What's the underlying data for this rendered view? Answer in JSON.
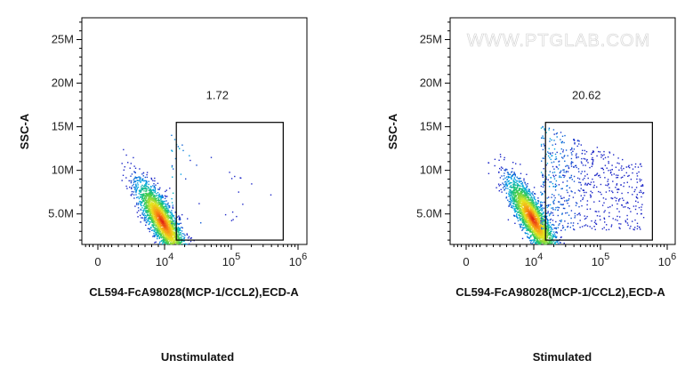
{
  "chart_data": [
    {
      "type": "scatter",
      "title": "Unstimulated",
      "xlabel": "CL594-FcA98028(MCP-1/CCL2),ECD-A",
      "ylabel": "SSC-A",
      "x_scale": "biexponential",
      "x_tick_labels": [
        "0",
        "10^4",
        "10^5",
        "10^6"
      ],
      "y_tick_labels": [
        "5.0M",
        "10M",
        "15M",
        "20M",
        "25M"
      ],
      "y_ticks": [
        5000000,
        10000000,
        15000000,
        20000000,
        25000000
      ],
      "ylim": [
        1500000,
        27500000
      ],
      "gate": {
        "x_range": [
          15000,
          600000
        ],
        "y_range": [
          2000000,
          15500000
        ],
        "percent": "1.72"
      },
      "population": {
        "center_x": 5000,
        "center_y": 4200000,
        "pct_in_gate": 1.72
      },
      "watermark": ""
    },
    {
      "type": "scatter",
      "title": "Stimulated",
      "xlabel": "CL594-FcA98028(MCP-1/CCL2),ECD-A",
      "ylabel": "SSC-A",
      "x_scale": "biexponential",
      "x_tick_labels": [
        "0",
        "10^4",
        "10^5",
        "10^6"
      ],
      "y_tick_labels": [
        "5.0M",
        "10M",
        "15M",
        "20M",
        "25M"
      ],
      "y_ticks": [
        5000000,
        10000000,
        15000000,
        20000000,
        25000000
      ],
      "ylim": [
        1500000,
        27500000
      ],
      "gate": {
        "x_range": [
          15000,
          600000
        ],
        "y_range": [
          2000000,
          15500000
        ],
        "percent": "20.62"
      },
      "population": {
        "center_x": 5500,
        "center_y": 4500000,
        "pct_in_gate": 20.62
      },
      "watermark": "WWW.PTGLAB.COM"
    }
  ]
}
